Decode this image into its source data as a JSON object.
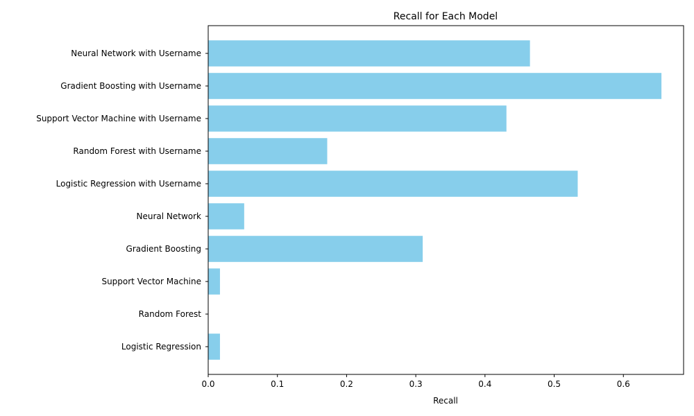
{
  "chart_data": {
    "type": "bar",
    "orientation": "horizontal",
    "title": "Recall for Each Model",
    "xlabel": "Recall",
    "ylabel": "",
    "xlim": [
      0,
      0.687
    ],
    "xticks": [
      0.0,
      0.1,
      0.2,
      0.3,
      0.4,
      0.5,
      0.6
    ],
    "xtick_labels": [
      "0.0",
      "0.1",
      "0.2",
      "0.3",
      "0.4",
      "0.5",
      "0.6"
    ],
    "categories": [
      "Logistic Regression",
      "Random Forest",
      "Support Vector Machine",
      "Gradient Boosting",
      "Neural Network",
      "Logistic Regression with Username",
      "Random Forest with Username",
      "Support Vector Machine with Username",
      "Gradient Boosting with Username",
      "Neural Network with Username"
    ],
    "values": [
      0.017,
      0.0,
      0.017,
      0.31,
      0.052,
      0.534,
      0.172,
      0.431,
      0.655,
      0.465
    ],
    "bar_color": "#87CEEB",
    "grid": false,
    "legend": "none"
  }
}
